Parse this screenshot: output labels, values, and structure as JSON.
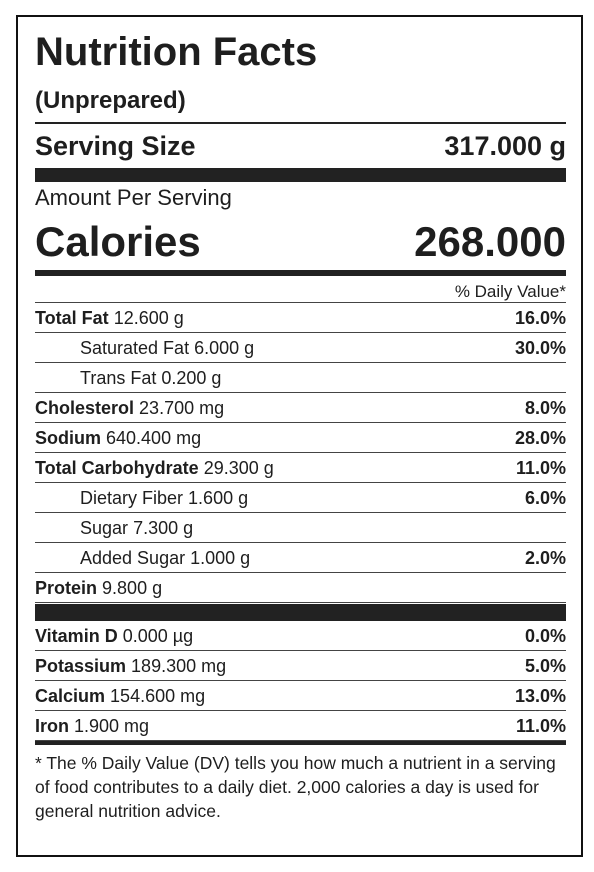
{
  "title": "Nutrition Facts",
  "subtitle": "(Unprepared)",
  "serving": {
    "label": "Serving Size",
    "value": "317.000 g"
  },
  "amount_per_serving": "Amount Per Serving",
  "calories": {
    "label": "Calories",
    "value": "268.000"
  },
  "dv_header": "% Daily Value*",
  "nutrients": [
    {
      "name": "Total Fat",
      "amount": "12.600 g",
      "dv": "16.0%",
      "sub": [
        {
          "name": "Saturated Fat",
          "amount": "6.000 g",
          "dv": "30.0%"
        },
        {
          "name": "Trans Fat",
          "amount": "0.200 g"
        }
      ]
    },
    {
      "name": "Cholesterol",
      "amount": "23.700 mg",
      "dv": "8.0%"
    },
    {
      "name": "Sodium",
      "amount": "640.400 mg",
      "dv": "28.0%"
    },
    {
      "name": "Total Carbohydrate",
      "amount": "29.300 g",
      "dv": "11.0%",
      "sub": [
        {
          "name": "Dietary Fiber",
          "amount": "1.600 g",
          "dv": "6.0%"
        },
        {
          "name": "Sugar",
          "amount": "7.300 g"
        },
        {
          "name": "Added Sugar",
          "amount": "1.000 g",
          "dv": "2.0%"
        }
      ]
    },
    {
      "name": "Protein",
      "amount": "9.800 g"
    }
  ],
  "vitamins": [
    {
      "name": "Vitamin D",
      "amount": "0.000 µg",
      "dv": "0.0%"
    },
    {
      "name": "Potassium",
      "amount": "189.300 mg",
      "dv": "5.0%"
    },
    {
      "name": "Calcium",
      "amount": "154.600 mg",
      "dv": "13.0%"
    },
    {
      "name": "Iron",
      "amount": "1.900 mg",
      "dv": "11.0%"
    }
  ],
  "footnote": "* The % Daily Value (DV) tells you how much a nutrient in a serving of food contributes to a daily diet. 2,000 calories a day is used for general nutrition advice."
}
